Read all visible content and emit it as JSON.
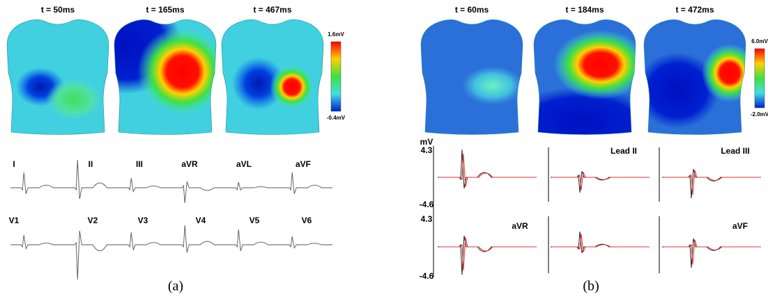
{
  "panel_a": {
    "maps": [
      {
        "label": "t = 50ms"
      },
      {
        "label": "t = 165ms"
      },
      {
        "label": "t = 467ms"
      }
    ],
    "colorbar": {
      "max": "1.6mV",
      "min": "-0.4mV"
    },
    "leads": [
      "I",
      "II",
      "III",
      "aVR",
      "aVL",
      "aVF",
      "V1",
      "V2",
      "V3",
      "V4",
      "V5",
      "V6"
    ],
    "caption": "(a)"
  },
  "panel_b": {
    "maps": [
      {
        "label": "t = 60ms"
      },
      {
        "label": "t = 184ms"
      },
      {
        "label": "t = 472ms"
      }
    ],
    "colorbar": {
      "max": "6.0mV",
      "min": "-2.0mV"
    },
    "unit": "mV",
    "rows": [
      {
        "top": "4.3",
        "bottom": "-4.6"
      },
      {
        "top": "4.3",
        "bottom": "-4.6"
      }
    ],
    "leads": [
      "Lead II",
      "Lead III",
      "aVR",
      "aVF"
    ],
    "caption": "(b)"
  }
}
